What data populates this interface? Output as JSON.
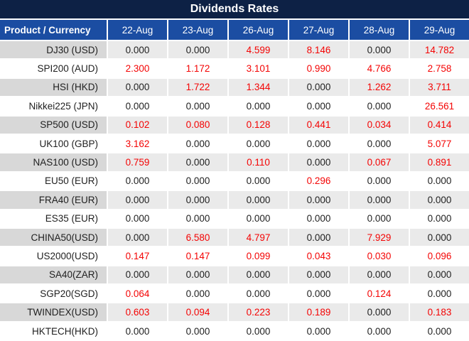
{
  "colors": {
    "title_bar_bg": "#0D2145",
    "title_bar_text": "#FFFFFF",
    "header_bg": "#1B4DA2",
    "header_text": "#FFFFFF",
    "shaded_row_product_bg": "#D8D8D8",
    "shaded_row_value_bg": "#EAEAEA",
    "white_row_bg": "#FFFFFF",
    "value_zero_color": "#1F1F1F",
    "value_nonzero_color": "#F40404"
  },
  "chart_data": {
    "type": "table",
    "title": "Dividends Rates",
    "product_header": "Product / Currency",
    "dates": [
      "22-Aug",
      "23-Aug",
      "26-Aug",
      "27-Aug",
      "28-Aug",
      "29-Aug"
    ],
    "value_color_rule": "values equal to 0.000 render dark; non-zero values render red",
    "row_shading_rule": "odd rows (1st, 3rd, ...) gray shaded; even rows white",
    "rows": [
      {
        "product": "DJ30 (USD)",
        "values": [
          "0.000",
          "0.000",
          "4.599",
          "8.146",
          "0.000",
          "14.782"
        ]
      },
      {
        "product": "SPI200 (AUD)",
        "values": [
          "2.300",
          "1.172",
          "3.101",
          "0.990",
          "4.766",
          "2.758"
        ]
      },
      {
        "product": "HSI (HKD)",
        "values": [
          "0.000",
          "1.722",
          "1.344",
          "0.000",
          "1.262",
          "3.711"
        ]
      },
      {
        "product": "Nikkei225 (JPN)",
        "values": [
          "0.000",
          "0.000",
          "0.000",
          "0.000",
          "0.000",
          "26.561"
        ]
      },
      {
        "product": "SP500 (USD)",
        "values": [
          "0.102",
          "0.080",
          "0.128",
          "0.441",
          "0.034",
          "0.414"
        ]
      },
      {
        "product": "UK100 (GBP)",
        "values": [
          "3.162",
          "0.000",
          "0.000",
          "0.000",
          "0.000",
          "5.077"
        ]
      },
      {
        "product": "NAS100 (USD)",
        "values": [
          "0.759",
          "0.000",
          "0.110",
          "0.000",
          "0.067",
          "0.891"
        ]
      },
      {
        "product": "EU50 (EUR)",
        "values": [
          "0.000",
          "0.000",
          "0.000",
          "0.296",
          "0.000",
          "0.000"
        ]
      },
      {
        "product": "FRA40 (EUR)",
        "values": [
          "0.000",
          "0.000",
          "0.000",
          "0.000",
          "0.000",
          "0.000"
        ]
      },
      {
        "product": "ES35 (EUR)",
        "values": [
          "0.000",
          "0.000",
          "0.000",
          "0.000",
          "0.000",
          "0.000"
        ]
      },
      {
        "product": "CHINA50(USD)",
        "values": [
          "0.000",
          "6.580",
          "4.797",
          "0.000",
          "7.929",
          "0.000"
        ]
      },
      {
        "product": "US2000(USD)",
        "values": [
          "0.147",
          "0.147",
          "0.099",
          "0.043",
          "0.030",
          "0.096"
        ]
      },
      {
        "product": "SA40(ZAR)",
        "values": [
          "0.000",
          "0.000",
          "0.000",
          "0.000",
          "0.000",
          "0.000"
        ]
      },
      {
        "product": "SGP20(SGD)",
        "values": [
          "0.064",
          "0.000",
          "0.000",
          "0.000",
          "0.124",
          "0.000"
        ]
      },
      {
        "product": "TWINDEX(USD)",
        "values": [
          "0.603",
          "0.094",
          "0.223",
          "0.189",
          "0.000",
          "0.183"
        ]
      },
      {
        "product": "HKTECH(HKD)",
        "values": [
          "0.000",
          "0.000",
          "0.000",
          "0.000",
          "0.000",
          "0.000"
        ]
      }
    ]
  }
}
